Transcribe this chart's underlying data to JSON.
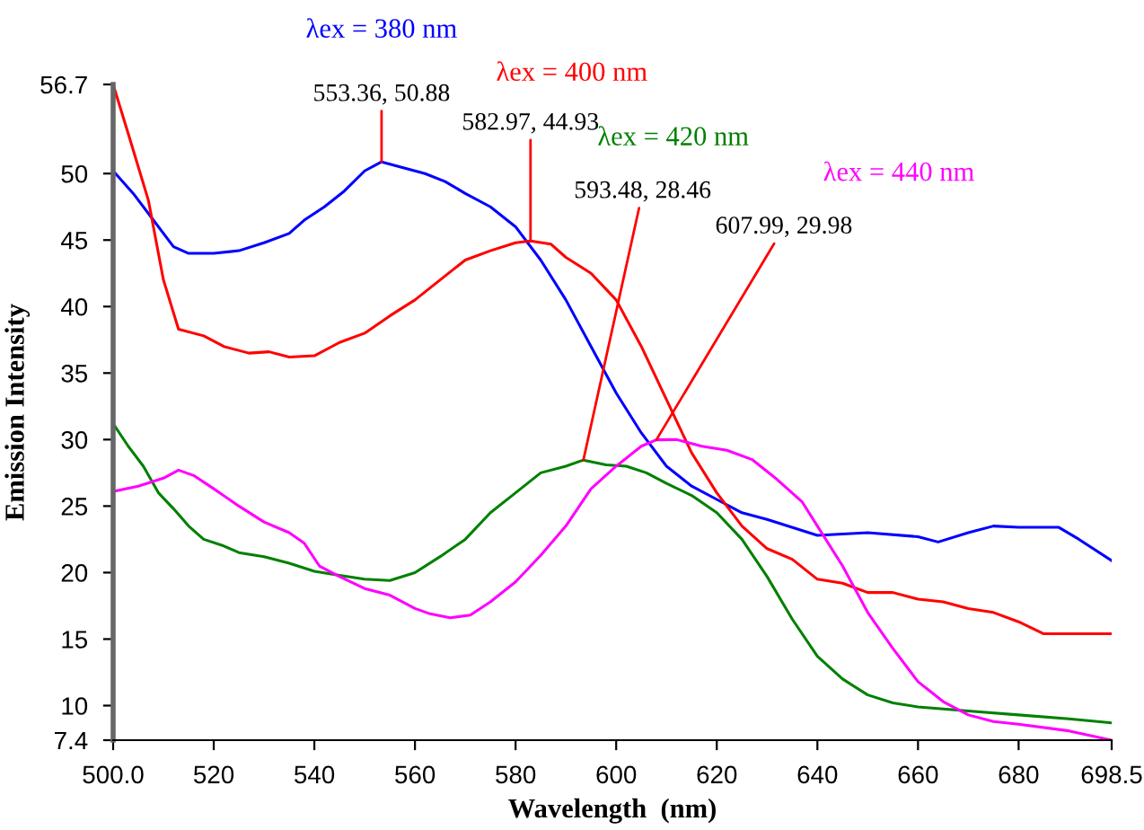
{
  "chart_data": {
    "type": "line",
    "xlabel": "Wavelength  (nm)",
    "ylabel": "Emission Intensity",
    "xlim": [
      500.0,
      698.5
    ],
    "xticks": [
      {
        "value": 500,
        "label": "500.0"
      },
      520,
      540,
      560,
      580,
      600,
      620,
      640,
      660,
      680,
      698.5
    ],
    "ylim": [
      7.4,
      56.7
    ],
    "yticks": [
      7.4,
      10,
      15,
      20,
      25,
      30,
      35,
      40,
      45,
      50,
      56.7
    ],
    "grid": false,
    "legend": false,
    "marker": "none",
    "line_style": "solid",
    "series": [
      {
        "name": "λex = 380 nm",
        "color": "#0000ff",
        "x": [
          500,
          504,
          508,
          512,
          515,
          520,
          525,
          530,
          535,
          538,
          542,
          546,
          550,
          553.36,
          558,
          562,
          566,
          570,
          575,
          580,
          585,
          590,
          595,
          600,
          605,
          610,
          615,
          620,
          625,
          630,
          640,
          650,
          660,
          664,
          670,
          675,
          680,
          688,
          692,
          698.5
        ],
        "values": [
          50.2,
          48.5,
          46.5,
          44.5,
          44.0,
          44.0,
          44.2,
          44.8,
          45.5,
          46.5,
          47.5,
          48.7,
          50.2,
          50.88,
          50.4,
          50.0,
          49.4,
          48.5,
          47.5,
          46.0,
          43.5,
          40.5,
          37.0,
          33.5,
          30.5,
          28.0,
          26.5,
          25.5,
          24.5,
          24.0,
          22.8,
          23.0,
          22.7,
          22.3,
          23.0,
          23.5,
          23.4,
          23.4,
          22.5,
          20.9
        ]
      },
      {
        "name": "λex = 400 nm",
        "color": "#ff0000",
        "x": [
          500,
          503,
          507,
          510,
          513,
          518,
          522,
          527,
          531,
          535,
          540,
          545,
          550,
          555,
          560,
          565,
          570,
          575,
          580,
          582.97,
          587,
          590,
          595,
          600,
          605,
          610,
          615,
          620,
          625,
          630,
          635,
          640,
          645,
          650,
          655,
          660,
          665,
          670,
          675,
          680,
          685,
          698.5
        ],
        "values": [
          56.7,
          53,
          48,
          42,
          38.3,
          37.8,
          37,
          36.5,
          36.6,
          36.2,
          36.3,
          37.3,
          38.0,
          39.3,
          40.5,
          42,
          43.5,
          44.2,
          44.8,
          44.93,
          44.7,
          43.7,
          42.5,
          40.5,
          37,
          33,
          29,
          26,
          23.5,
          21.8,
          21.0,
          19.5,
          19.2,
          18.5,
          18.5,
          18.0,
          17.8,
          17.3,
          17.0,
          16.3,
          15.4,
          15.4
        ]
      },
      {
        "name": "λex = 420 nm",
        "color": "#008000",
        "x": [
          500,
          503,
          506,
          509,
          512,
          515,
          518,
          522,
          525,
          530,
          535,
          540,
          545,
          550,
          555,
          560,
          565,
          570,
          575,
          580,
          585,
          590,
          593.48,
          598,
          602,
          606,
          610,
          615,
          620,
          625,
          630,
          635,
          640,
          645,
          650,
          655,
          660,
          670,
          680,
          690,
          698.5
        ],
        "values": [
          31.2,
          29.5,
          28,
          26,
          24.8,
          23.5,
          22.5,
          22.0,
          21.5,
          21.2,
          20.7,
          20.1,
          19.8,
          19.5,
          19.4,
          20.0,
          21.2,
          22.5,
          24.5,
          26.0,
          27.5,
          28.0,
          28.46,
          28.1,
          28.0,
          27.5,
          26.7,
          25.8,
          24.5,
          22.5,
          19.7,
          16.5,
          13.7,
          12.0,
          10.8,
          10.2,
          9.9,
          9.6,
          9.3,
          9.0,
          8.7
        ]
      },
      {
        "name": "λex = 440 nm",
        "color": "#ff00ff",
        "x": [
          500,
          505,
          510,
          513,
          516,
          520,
          525,
          530,
          535,
          538,
          541,
          545,
          550,
          555,
          560,
          563,
          567,
          571,
          575,
          580,
          585,
          590,
          595,
          600,
          605,
          607.99,
          612,
          617,
          622,
          627,
          632,
          637,
          640,
          645,
          650,
          655,
          660,
          665,
          670,
          675,
          680,
          690,
          698.5
        ],
        "values": [
          26.1,
          26.5,
          27.1,
          27.7,
          27.3,
          26.3,
          25.0,
          23.8,
          23.0,
          22.2,
          20.5,
          19.7,
          18.8,
          18.3,
          17.3,
          16.9,
          16.6,
          16.8,
          17.8,
          19.3,
          21.3,
          23.5,
          26.3,
          28.0,
          29.5,
          29.98,
          30.0,
          29.5,
          29.2,
          28.5,
          27.0,
          25.3,
          23.5,
          20.5,
          17.0,
          14.3,
          11.8,
          10.3,
          9.3,
          8.8,
          8.6,
          8.1,
          7.4
        ]
      }
    ],
    "annotations": [
      {
        "text": "553.36, 50.88",
        "x": 553.36,
        "y": 50.88
      },
      {
        "text": "582.97, 44.93",
        "x": 582.97,
        "y": 44.93
      },
      {
        "text": "593.48, 28.46",
        "x": 593.48,
        "y": 28.46
      },
      {
        "text": "607.99, 29.98",
        "x": 607.99,
        "y": 29.98
      }
    ]
  }
}
